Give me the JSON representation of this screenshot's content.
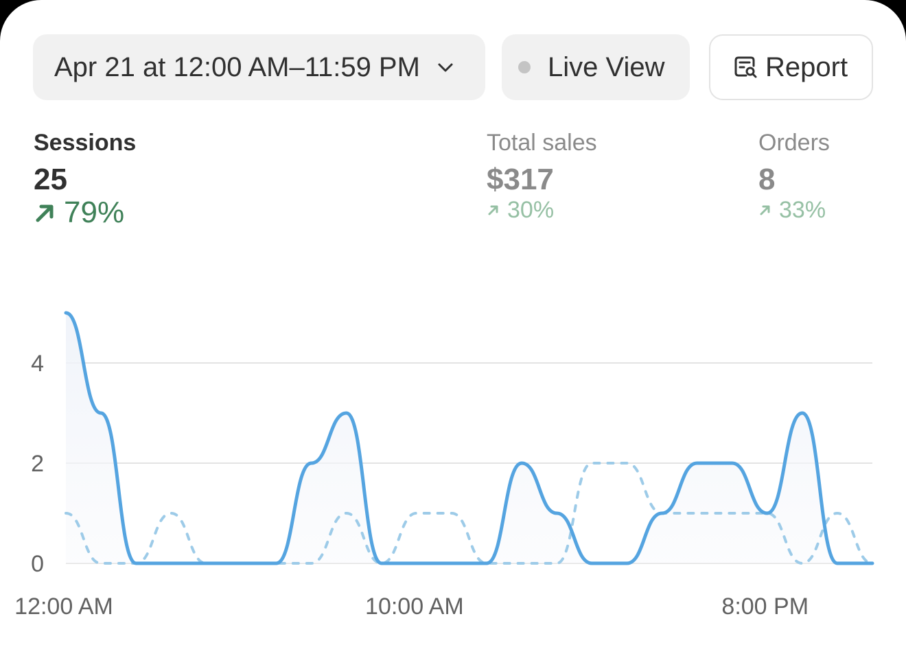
{
  "toolbar": {
    "date_range_label": "Apr 21 at 12:00 AM–11:59 PM",
    "live_view_label": "Live View",
    "report_label": "Report"
  },
  "metrics": {
    "sessions": {
      "label": "Sessions",
      "value": "25",
      "change": "79%"
    },
    "total_sales": {
      "label": "Total sales",
      "value": "$317",
      "change": "30%"
    },
    "orders": {
      "label": "Orders",
      "value": "8",
      "change": "33%"
    }
  },
  "colors": {
    "primary_line": "#55a4e0",
    "comparison_line": "#9dcbe8",
    "positive_change": "#3f8158",
    "positive_change_muted": "#96c0a4"
  },
  "icons": {
    "date_chevron": "chevron-down-icon",
    "live_dot": "status-dot-icon",
    "report": "report-search-icon",
    "trend": "arrow-up-right-icon"
  },
  "chart_data": {
    "type": "line",
    "ylim": [
      0,
      5
    ],
    "yticks": [
      "0",
      "2",
      "4"
    ],
    "x_tick_labels": [
      "12:00 AM",
      "10:00 AM",
      "8:00 PM"
    ],
    "x_tick_index": [
      0,
      10,
      20
    ],
    "grid": true,
    "series": [
      {
        "values": [
          5,
          3,
          0,
          0,
          0,
          0,
          0,
          2,
          3,
          0,
          0,
          0,
          0,
          2,
          1,
          0,
          0,
          1,
          2,
          2,
          1,
          3,
          0,
          0
        ]
      },
      {
        "values": [
          1,
          0,
          0,
          1,
          0,
          0,
          0,
          0,
          1,
          0,
          1,
          1,
          0,
          0,
          0,
          2,
          2,
          1,
          1,
          1,
          1,
          0,
          1,
          0
        ]
      }
    ]
  }
}
